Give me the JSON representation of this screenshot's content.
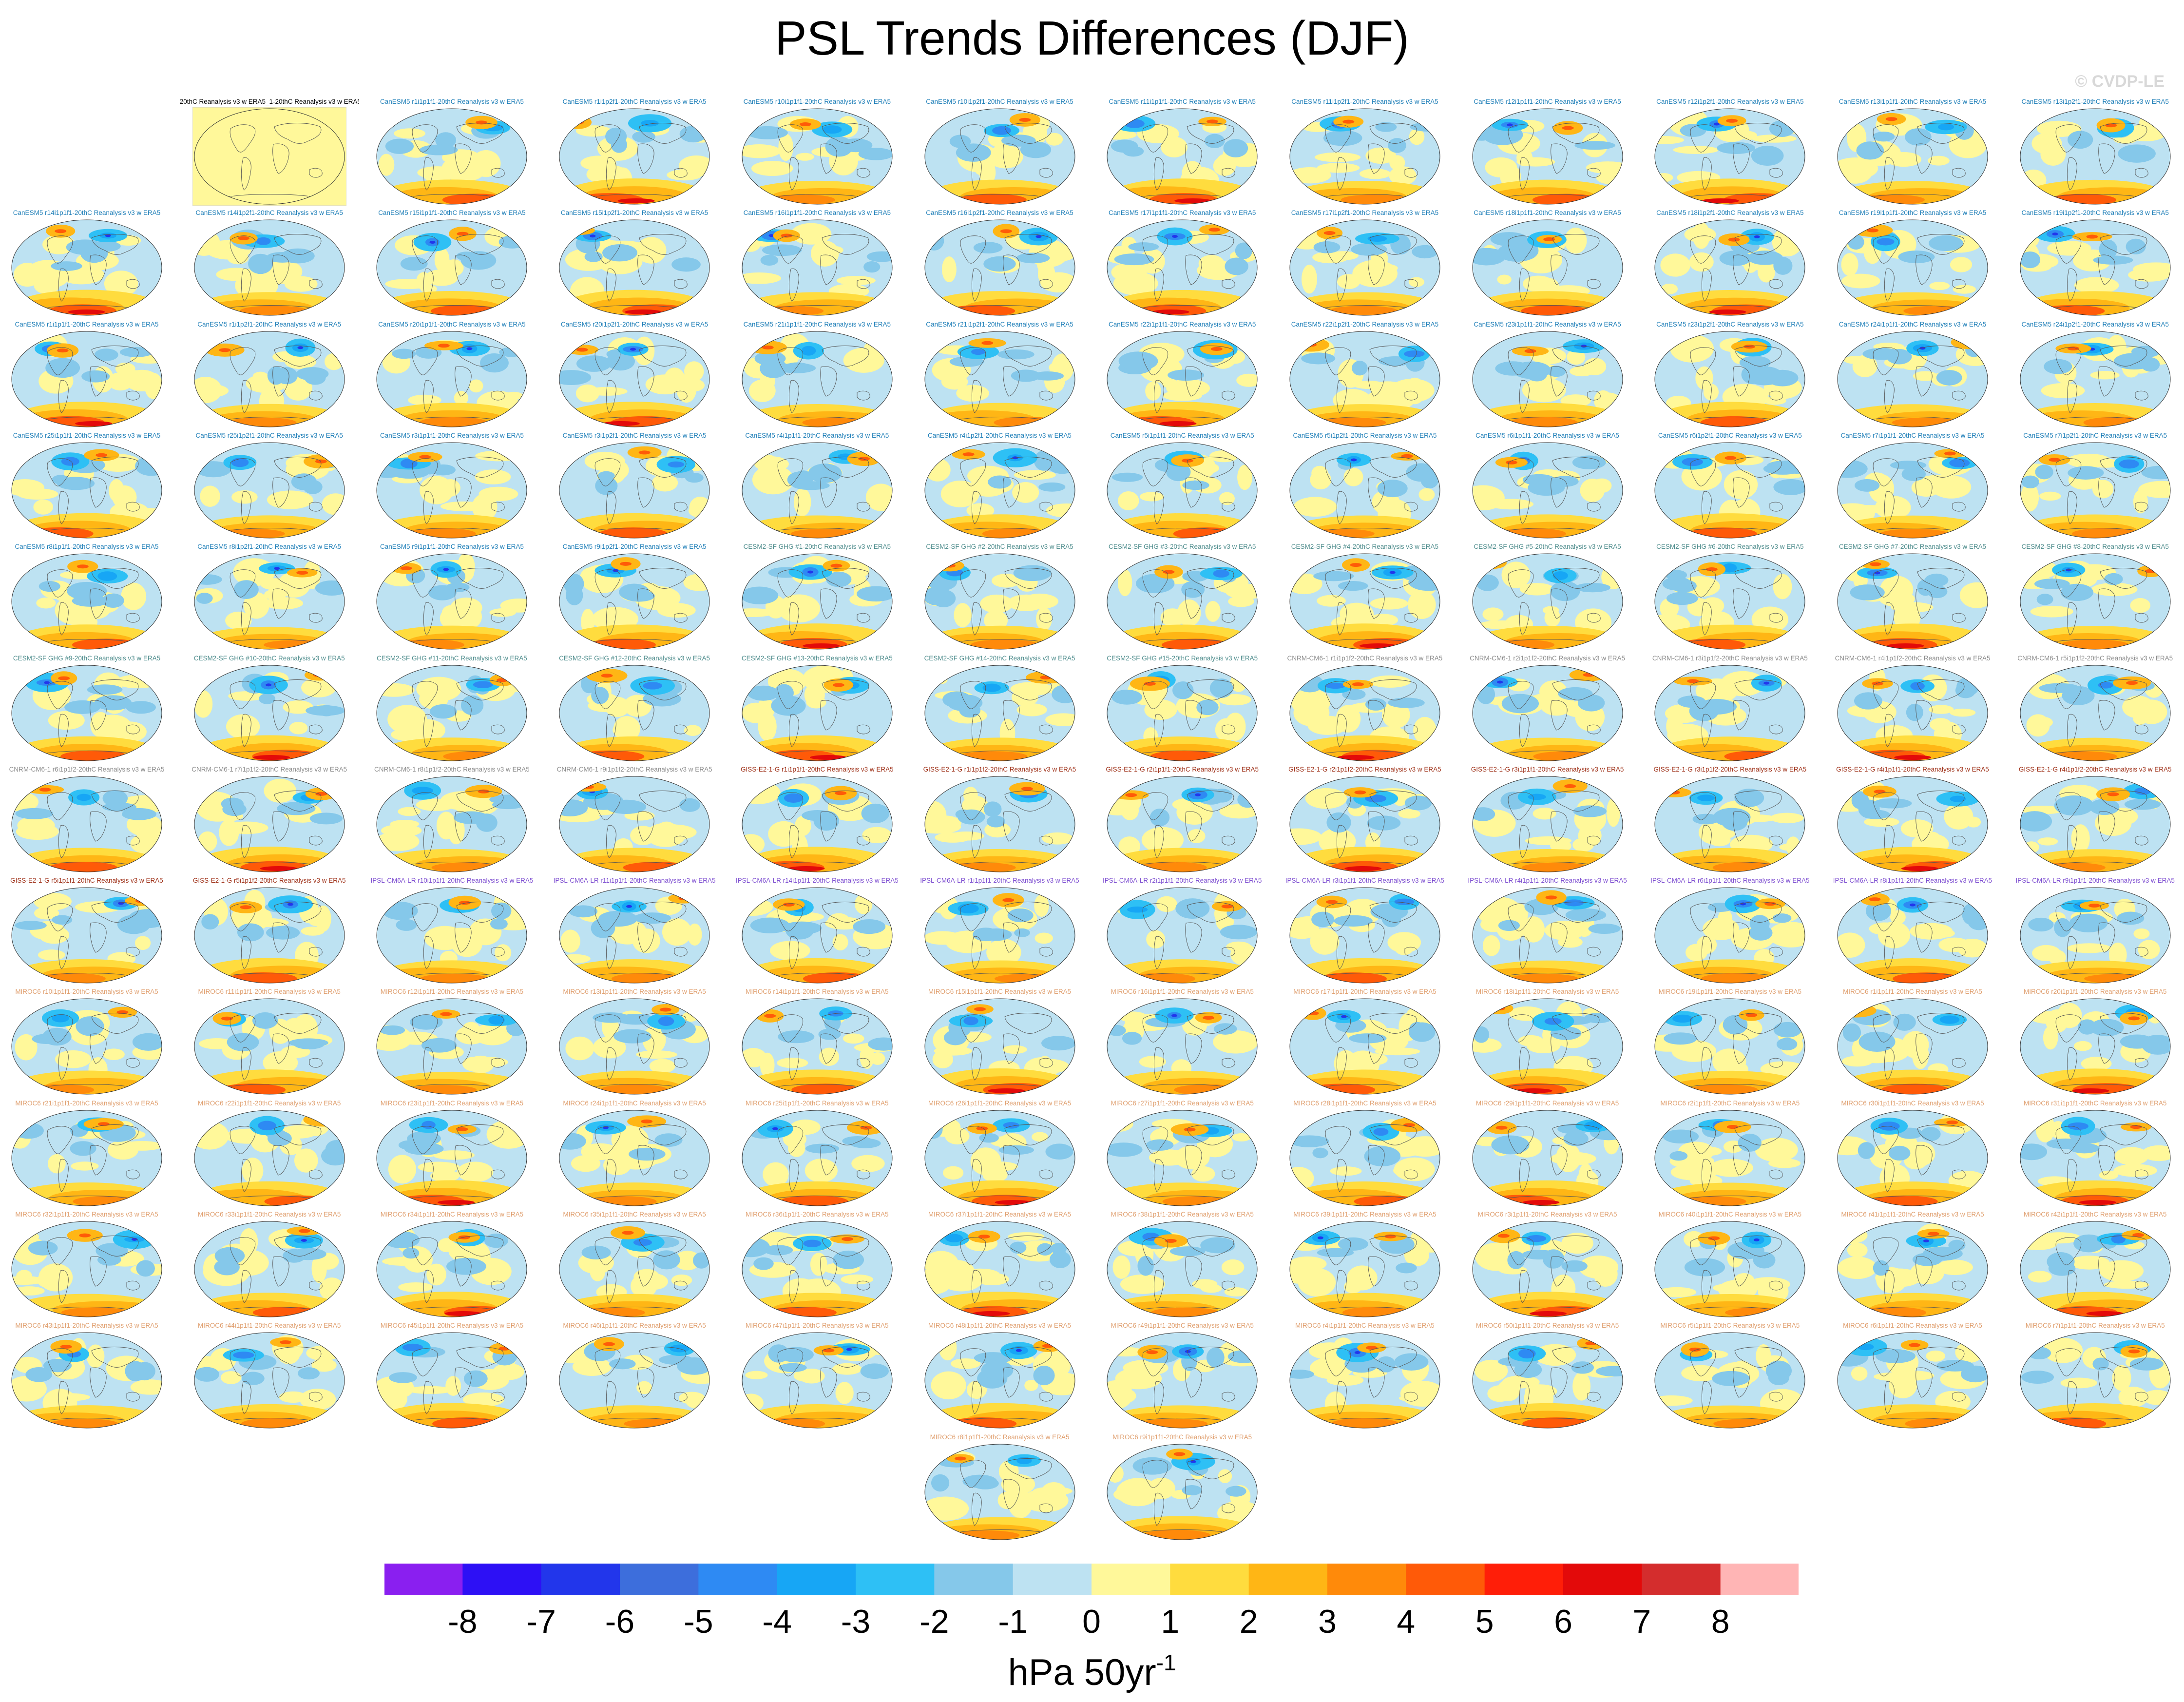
{
  "title": "PSL Trends Differences (DJF)",
  "credit": "© CVDP-LE",
  "units_base": "hPa 50yr",
  "units_exp": "-1",
  "chart_data": {
    "type": "heatmap",
    "title": "PSL Trends Differences (DJF)",
    "units": "hPa 50yr-1",
    "colorbar": {
      "ticks": [
        "-8",
        "-7",
        "-6",
        "-5",
        "-4",
        "-3",
        "-2",
        "-1",
        "0",
        "1",
        "2",
        "3",
        "4",
        "5",
        "6",
        "7",
        "8"
      ],
      "colors": [
        "#8a1ff0",
        "#2d10f5",
        "#2236eb",
        "#3d6edc",
        "#2e8af3",
        "#17a6f5",
        "#2ec0f5",
        "#85c8ea",
        "#bde2f2",
        "#fff89a",
        "#ffdc3e",
        "#ffb615",
        "#ff8a0a",
        "#ff5a08",
        "#ff1e08",
        "#e30a0a",
        "#d42d2d",
        "#ffb5b5"
      ]
    },
    "panels": [
      {
        "label": "20thC Reanalysis v3 w ERA5_1-20thC Reanalysis v3 w ERA5",
        "color": "#000000",
        "reference": true
      },
      {
        "label": "CanESM5 r1i1p1f1-20thC Reanalysis v3 w ERA5",
        "color": "#1f7fb8"
      },
      {
        "label": "CanESM5 r1i1p2f1-20thC Reanalysis v3 w ERA5",
        "color": "#1f7fb8"
      },
      {
        "label": "CanESM5 r10i1p1f1-20thC Reanalysis v3 w ERA5",
        "color": "#1f7fb8"
      },
      {
        "label": "CanESM5 r10i1p2f1-20thC Reanalysis v3 w ERA5",
        "color": "#1f7fb8"
      },
      {
        "label": "CanESM5 r11i1p1f1-20thC Reanalysis v3 w ERA5",
        "color": "#1f7fb8"
      },
      {
        "label": "CanESM5 r11i1p2f1-20thC Reanalysis v3 w ERA5",
        "color": "#1f7fb8"
      },
      {
        "label": "CanESM5 r12i1p1f1-20thC Reanalysis v3 w ERA5",
        "color": "#1f7fb8"
      },
      {
        "label": "CanESM5 r12i1p2f1-20thC Reanalysis v3 w ERA5",
        "color": "#1f7fb8"
      },
      {
        "label": "CanESM5 r13i1p1f1-20thC Reanalysis v3 w ERA5",
        "color": "#1f7fb8"
      },
      {
        "label": "CanESM5 r13i1p2f1-20thC Reanalysis v3 w ERA5",
        "color": "#1f7fb8"
      },
      {
        "label": "CanESM5 r14i1p1f1-20thC Reanalysis v3 w ERA5",
        "color": "#1f7fb8"
      },
      {
        "label": "CanESM5 r14i1p2f1-20thC Reanalysis v3 w ERA5",
        "color": "#1f7fb8"
      },
      {
        "label": "CanESM5 r15i1p1f1-20thC Reanalysis v3 w ERA5",
        "color": "#1f7fb8"
      },
      {
        "label": "CanESM5 r15i1p2f1-20thC Reanalysis v3 w ERA5",
        "color": "#1f7fb8"
      },
      {
        "label": "CanESM5 r16i1p1f1-20thC Reanalysis v3 w ERA5",
        "color": "#1f7fb8"
      },
      {
        "label": "CanESM5 r16i1p2f1-20thC Reanalysis v3 w ERA5",
        "color": "#1f7fb8"
      },
      {
        "label": "CanESM5 r17i1p1f1-20thC Reanalysis v3 w ERA5",
        "color": "#1f7fb8"
      },
      {
        "label": "CanESM5 r17i1p2f1-20thC Reanalysis v3 w ERA5",
        "color": "#1f7fb8"
      },
      {
        "label": "CanESM5 r18i1p1f1-20thC Reanalysis v3 w ERA5",
        "color": "#1f7fb8"
      },
      {
        "label": "CanESM5 r18i1p2f1-20thC Reanalysis v3 w ERA5",
        "color": "#1f7fb8"
      },
      {
        "label": "CanESM5 r19i1p1f1-20thC Reanalysis v3 w ERA5",
        "color": "#1f7fb8"
      },
      {
        "label": "CanESM5 r19i1p2f1-20thC Reanalysis v3 w ERA5",
        "color": "#1f7fb8"
      },
      {
        "label": "CanESM5 r1i1p1f1-20thC Reanalysis v3 w ERA5",
        "color": "#1f7fb8"
      },
      {
        "label": "CanESM5 r1i1p2f1-20thC Reanalysis v3 w ERA5",
        "color": "#1f7fb8"
      },
      {
        "label": "CanESM5 r20i1p1f1-20thC Reanalysis v3 w ERA5",
        "color": "#1f7fb8"
      },
      {
        "label": "CanESM5 r20i1p2f1-20thC Reanalysis v3 w ERA5",
        "color": "#1f7fb8"
      },
      {
        "label": "CanESM5 r21i1p1f1-20thC Reanalysis v3 w ERA5",
        "color": "#1f7fb8"
      },
      {
        "label": "CanESM5 r21i1p2f1-20thC Reanalysis v3 w ERA5",
        "color": "#1f7fb8"
      },
      {
        "label": "CanESM5 r22i1p1f1-20thC Reanalysis v3 w ERA5",
        "color": "#1f7fb8"
      },
      {
        "label": "CanESM5 r22i1p2f1-20thC Reanalysis v3 w ERA5",
        "color": "#1f7fb8"
      },
      {
        "label": "CanESM5 r23i1p1f1-20thC Reanalysis v3 w ERA5",
        "color": "#1f7fb8"
      },
      {
        "label": "CanESM5 r23i1p2f1-20thC Reanalysis v3 w ERA5",
        "color": "#1f7fb8"
      },
      {
        "label": "CanESM5 r24i1p1f1-20thC Reanalysis v3 w ERA5",
        "color": "#1f7fb8"
      },
      {
        "label": "CanESM5 r24i1p2f1-20thC Reanalysis v3 w ERA5",
        "color": "#1f7fb8"
      },
      {
        "label": "CanESM5 r25i1p1f1-20thC Reanalysis v3 w ERA5",
        "color": "#1f7fb8"
      },
      {
        "label": "CanESM5 r25i1p2f1-20thC Reanalysis v3 w ERA5",
        "color": "#1f7fb8"
      },
      {
        "label": "CanESM5 r3i1p1f1-20thC Reanalysis v3 w ERA5",
        "color": "#1f7fb8"
      },
      {
        "label": "CanESM5 r3i1p2f1-20thC Reanalysis v3 w ERA5",
        "color": "#1f7fb8"
      },
      {
        "label": "CanESM5 r4i1p1f1-20thC Reanalysis v3 w ERA5",
        "color": "#1f7fb8"
      },
      {
        "label": "CanESM5 r4i1p2f1-20thC Reanalysis v3 w ERA5",
        "color": "#1f7fb8"
      },
      {
        "label": "CanESM5 r5i1p1f1-20thC Reanalysis v3 w ERA5",
        "color": "#1f7fb8"
      },
      {
        "label": "CanESM5 r5i1p2f1-20thC Reanalysis v3 w ERA5",
        "color": "#1f7fb8"
      },
      {
        "label": "CanESM5 r6i1p1f1-20thC Reanalysis v3 w ERA5",
        "color": "#1f7fb8"
      },
      {
        "label": "CanESM5 r6i1p2f1-20thC Reanalysis v3 w ERA5",
        "color": "#1f7fb8"
      },
      {
        "label": "CanESM5 r7i1p1f1-20thC Reanalysis v3 w ERA5",
        "color": "#1f7fb8"
      },
      {
        "label": "CanESM5 r7i1p2f1-20thC Reanalysis v3 w ERA5",
        "color": "#1f7fb8"
      },
      {
        "label": "CanESM5 r8i1p1f1-20thC Reanalysis v3 w ERA5",
        "color": "#1f7fb8"
      },
      {
        "label": "CanESM5 r8i1p2f1-20thC Reanalysis v3 w ERA5",
        "color": "#1f7fb8"
      },
      {
        "label": "CanESM5 r9i1p1f1-20thC Reanalysis v3 w ERA5",
        "color": "#1f7fb8"
      },
      {
        "label": "CanESM5 r9i1p2f1-20thC Reanalysis v3 w ERA5",
        "color": "#1f7fb8"
      },
      {
        "label": "CESM2-SF GHG #1-20thC Reanalysis v3 w ERA5",
        "color": "#4f8d8d"
      },
      {
        "label": "CESM2-SF GHG #2-20thC Reanalysis v3 w ERA5",
        "color": "#4f8d8d"
      },
      {
        "label": "CESM2-SF GHG #3-20thC Reanalysis v3 w ERA5",
        "color": "#4f8d8d"
      },
      {
        "label": "CESM2-SF GHG #4-20thC Reanalysis v3 w ERA5",
        "color": "#4f8d8d"
      },
      {
        "label": "CESM2-SF GHG #5-20thC Reanalysis v3 w ERA5",
        "color": "#4f8d8d"
      },
      {
        "label": "CESM2-SF GHG #6-20thC Reanalysis v3 w ERA5",
        "color": "#4f8d8d"
      },
      {
        "label": "CESM2-SF GHG #7-20thC Reanalysis v3 w ERA5",
        "color": "#4f8d8d"
      },
      {
        "label": "CESM2-SF GHG #8-20thC Reanalysis v3 w ERA5",
        "color": "#4f8d8d"
      },
      {
        "label": "CESM2-SF GHG #9-20thC Reanalysis v3 w ERA5",
        "color": "#4f8d8d"
      },
      {
        "label": "CESM2-SF GHG #10-20thC Reanalysis v3 w ERA5",
        "color": "#4f8d8d"
      },
      {
        "label": "CESM2-SF GHG #11-20thC Reanalysis v3 w ERA5",
        "color": "#4f8d8d"
      },
      {
        "label": "CESM2-SF GHG #12-20thC Reanalysis v3 w ERA5",
        "color": "#4f8d8d"
      },
      {
        "label": "CESM2-SF GHG #13-20thC Reanalysis v3 w ERA5",
        "color": "#4f8d8d"
      },
      {
        "label": "CESM2-SF GHG #14-20thC Reanalysis v3 w ERA5",
        "color": "#4f8d8d"
      },
      {
        "label": "CESM2-SF GHG #15-20thC Reanalysis v3 w ERA5",
        "color": "#4f8d8d"
      },
      {
        "label": "CNRM-CM6-1 r1i1p1f2-20thC Reanalysis v3 w ERA5",
        "color": "#8c8c8c"
      },
      {
        "label": "CNRM-CM6-1 r2i1p1f2-20thC Reanalysis v3 w ERA5",
        "color": "#8c8c8c"
      },
      {
        "label": "CNRM-CM6-1 r3i1p1f2-20thC Reanalysis v3 w ERA5",
        "color": "#8c8c8c"
      },
      {
        "label": "CNRM-CM6-1 r4i1p1f2-20thC Reanalysis v3 w ERA5",
        "color": "#8c8c8c"
      },
      {
        "label": "CNRM-CM6-1 r5i1p1f2-20thC Reanalysis v3 w ERA5",
        "color": "#8c8c8c"
      },
      {
        "label": "CNRM-CM6-1 r6i1p1f2-20thC Reanalysis v3 w ERA5",
        "color": "#8c8c8c"
      },
      {
        "label": "CNRM-CM6-1 r7i1p1f2-20thC Reanalysis v3 w ERA5",
        "color": "#8c8c8c"
      },
      {
        "label": "CNRM-CM6-1 r8i1p1f2-20thC Reanalysis v3 w ERA5",
        "color": "#8c8c8c"
      },
      {
        "label": "CNRM-CM6-1 r9i1p1f2-20thC Reanalysis v3 w ERA5",
        "color": "#8c8c8c"
      },
      {
        "label": "GISS-E2-1-G r1i1p1f1-20thC Reanalysis v3 w ERA5",
        "color": "#a0341c"
      },
      {
        "label": "GISS-E2-1-G r1i1p1f2-20thC Reanalysis v3 w ERA5",
        "color": "#a0341c"
      },
      {
        "label": "GISS-E2-1-G r2i1p1f1-20thC Reanalysis v3 w ERA5",
        "color": "#a0341c"
      },
      {
        "label": "GISS-E2-1-G r2i1p1f2-20thC Reanalysis v3 w ERA5",
        "color": "#a0341c"
      },
      {
        "label": "GISS-E2-1-G r3i1p1f1-20thC Reanalysis v3 w ERA5",
        "color": "#a0341c"
      },
      {
        "label": "GISS-E2-1-G r3i1p1f2-20thC Reanalysis v3 w ERA5",
        "color": "#a0341c"
      },
      {
        "label": "GISS-E2-1-G r4i1p1f1-20thC Reanalysis v3 w ERA5",
        "color": "#a0341c"
      },
      {
        "label": "GISS-E2-1-G r4i1p1f2-20thC Reanalysis v3 w ERA5",
        "color": "#a0341c"
      },
      {
        "label": "GISS-E2-1-G r5i1p1f1-20thC Reanalysis v3 w ERA5",
        "color": "#a0341c"
      },
      {
        "label": "GISS-E2-1-G r5i1p1f2-20thC Reanalysis v3 w ERA5",
        "color": "#a0341c"
      },
      {
        "label": "IPSL-CM6A-LR r10i1p1f1-20thC Reanalysis v3 w ERA5",
        "color": "#7e4fd1"
      },
      {
        "label": "IPSL-CM6A-LR r11i1p1f1-20thC Reanalysis v3 w ERA5",
        "color": "#7e4fd1"
      },
      {
        "label": "IPSL-CM6A-LR r14i1p1f1-20thC Reanalysis v3 w ERA5",
        "color": "#7e4fd1"
      },
      {
        "label": "IPSL-CM6A-LR r1i1p1f1-20thC Reanalysis v3 w ERA5",
        "color": "#7e4fd1"
      },
      {
        "label": "IPSL-CM6A-LR r2i1p1f1-20thC Reanalysis v3 w ERA5",
        "color": "#7e4fd1"
      },
      {
        "label": "IPSL-CM6A-LR r3i1p1f1-20thC Reanalysis v3 w ERA5",
        "color": "#7e4fd1"
      },
      {
        "label": "IPSL-CM6A-LR r4i1p1f1-20thC Reanalysis v3 w ERA5",
        "color": "#7e4fd1"
      },
      {
        "label": "IPSL-CM6A-LR r6i1p1f1-20thC Reanalysis v3 w ERA5",
        "color": "#7e4fd1"
      },
      {
        "label": "IPSL-CM6A-LR r8i1p1f1-20thC Reanalysis v3 w ERA5",
        "color": "#7e4fd1"
      },
      {
        "label": "IPSL-CM6A-LR r9i1p1f1-20thC Reanalysis v3 w ERA5",
        "color": "#7e4fd1"
      },
      {
        "label": "MIROC6 r10i1p1f1-20thC Reanalysis v3 w ERA5",
        "color": "#e0a070"
      },
      {
        "label": "MIROC6 r11i1p1f1-20thC Reanalysis v3 w ERA5",
        "color": "#e0a070"
      },
      {
        "label": "MIROC6 r12i1p1f1-20thC Reanalysis v3 w ERA5",
        "color": "#e0a070"
      },
      {
        "label": "MIROC6 r13i1p1f1-20thC Reanalysis v3 w ERA5",
        "color": "#e0a070"
      },
      {
        "label": "MIROC6 r14i1p1f1-20thC Reanalysis v3 w ERA5",
        "color": "#e0a070"
      },
      {
        "label": "MIROC6 r15i1p1f1-20thC Reanalysis v3 w ERA5",
        "color": "#e0a070"
      },
      {
        "label": "MIROC6 r16i1p1f1-20thC Reanalysis v3 w ERA5",
        "color": "#e0a070"
      },
      {
        "label": "MIROC6 r17i1p1f1-20thC Reanalysis v3 w ERA5",
        "color": "#e0a070"
      },
      {
        "label": "MIROC6 r18i1p1f1-20thC Reanalysis v3 w ERA5",
        "color": "#e0a070"
      },
      {
        "label": "MIROC6 r19i1p1f1-20thC Reanalysis v3 w ERA5",
        "color": "#e0a070"
      },
      {
        "label": "MIROC6 r1i1p1f1-20thC Reanalysis v3 w ERA5",
        "color": "#e0a070"
      },
      {
        "label": "MIROC6 r20i1p1f1-20thC Reanalysis v3 w ERA5",
        "color": "#e0a070"
      },
      {
        "label": "MIROC6 r21i1p1f1-20thC Reanalysis v3 w ERA5",
        "color": "#e0a070"
      },
      {
        "label": "MIROC6 r22i1p1f1-20thC Reanalysis v3 w ERA5",
        "color": "#e0a070"
      },
      {
        "label": "MIROC6 r23i1p1f1-20thC Reanalysis v3 w ERA5",
        "color": "#e0a070"
      },
      {
        "label": "MIROC6 r24i1p1f1-20thC Reanalysis v3 w ERA5",
        "color": "#e0a070"
      },
      {
        "label": "MIROC6 r25i1p1f1-20thC Reanalysis v3 w ERA5",
        "color": "#e0a070"
      },
      {
        "label": "MIROC6 r26i1p1f1-20thC Reanalysis v3 w ERA5",
        "color": "#e0a070"
      },
      {
        "label": "MIROC6 r27i1p1f1-20thC Reanalysis v3 w ERA5",
        "color": "#e0a070"
      },
      {
        "label": "MIROC6 r28i1p1f1-20thC Reanalysis v3 w ERA5",
        "color": "#e0a070"
      },
      {
        "label": "MIROC6 r29i1p1f1-20thC Reanalysis v3 w ERA5",
        "color": "#e0a070"
      },
      {
        "label": "MIROC6 r2i1p1f1-20thC Reanalysis v3 w ERA5",
        "color": "#e0a070"
      },
      {
        "label": "MIROC6 r30i1p1f1-20thC Reanalysis v3 w ERA5",
        "color": "#e0a070"
      },
      {
        "label": "MIROC6 r31i1p1f1-20thC Reanalysis v3 w ERA5",
        "color": "#e0a070"
      },
      {
        "label": "MIROC6 r32i1p1f1-20thC Reanalysis v3 w ERA5",
        "color": "#e0a070"
      },
      {
        "label": "MIROC6 r33i1p1f1-20thC Reanalysis v3 w ERA5",
        "color": "#e0a070"
      },
      {
        "label": "MIROC6 r34i1p1f1-20thC Reanalysis v3 w ERA5",
        "color": "#e0a070"
      },
      {
        "label": "MIROC6 r35i1p1f1-20thC Reanalysis v3 w ERA5",
        "color": "#e0a070"
      },
      {
        "label": "MIROC6 r36i1p1f1-20thC Reanalysis v3 w ERA5",
        "color": "#e0a070"
      },
      {
        "label": "MIROC6 r37i1p1f1-20thC Reanalysis v3 w ERA5",
        "color": "#e0a070"
      },
      {
        "label": "MIROC6 r38i1p1f1-20thC Reanalysis v3 w ERA5",
        "color": "#e0a070"
      },
      {
        "label": "MIROC6 r39i1p1f1-20thC Reanalysis v3 w ERA5",
        "color": "#e0a070"
      },
      {
        "label": "MIROC6 r3i1p1f1-20thC Reanalysis v3 w ERA5",
        "color": "#e0a070"
      },
      {
        "label": "MIROC6 r40i1p1f1-20thC Reanalysis v3 w ERA5",
        "color": "#e0a070"
      },
      {
        "label": "MIROC6 r41i1p1f1-20thC Reanalysis v3 w ERA5",
        "color": "#e0a070"
      },
      {
        "label": "MIROC6 r42i1p1f1-20thC Reanalysis v3 w ERA5",
        "color": "#e0a070"
      },
      {
        "label": "MIROC6 r43i1p1f1-20thC Reanalysis v3 w ERA5",
        "color": "#e0a070"
      },
      {
        "label": "MIROC6 r44i1p1f1-20thC Reanalysis v3 w ERA5",
        "color": "#e0a070"
      },
      {
        "label": "MIROC6 r45i1p1f1-20thC Reanalysis v3 w ERA5",
        "color": "#e0a070"
      },
      {
        "label": "MIROC6 r46i1p1f1-20thC Reanalysis v3 w ERA5",
        "color": "#e0a070"
      },
      {
        "label": "MIROC6 r47i1p1f1-20thC Reanalysis v3 w ERA5",
        "color": "#e0a070"
      },
      {
        "label": "MIROC6 r48i1p1f1-20thC Reanalysis v3 w ERA5",
        "color": "#e0a070"
      },
      {
        "label": "MIROC6 r49i1p1f1-20thC Reanalysis v3 w ERA5",
        "color": "#e0a070"
      },
      {
        "label": "MIROC6 r4i1p1f1-20thC Reanalysis v3 w ERA5",
        "color": "#e0a070"
      },
      {
        "label": "MIROC6 r50i1p1f1-20thC Reanalysis v3 w ERA5",
        "color": "#e0a070"
      },
      {
        "label": "MIROC6 r5i1p1f1-20thC Reanalysis v3 w ERA5",
        "color": "#e0a070"
      },
      {
        "label": "MIROC6 r6i1p1f1-20thC Reanalysis v3 w ERA5",
        "color": "#e0a070"
      },
      {
        "label": "MIROC6 r7i1p1f1-20thC Reanalysis v3 w ERA5",
        "color": "#e0a070"
      },
      {
        "label": "MIROC6 r8i1p1f1-20thC Reanalysis v3 w ERA5",
        "color": "#e0a070"
      },
      {
        "label": "MIROC6 r9i1p1f1-20thC Reanalysis v3 w ERA5",
        "color": "#e0a070"
      }
    ]
  }
}
